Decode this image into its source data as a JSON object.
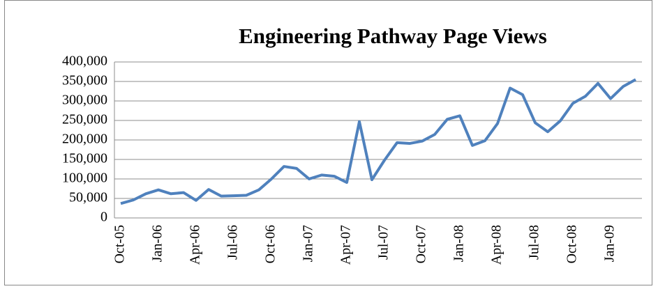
{
  "chart_data": {
    "type": "line",
    "title": "Engineering Pathway Page Views",
    "categories": [
      "Oct-05",
      null,
      null,
      "Jan-06",
      null,
      null,
      "Apr-06",
      null,
      null,
      "Jul-06",
      null,
      null,
      "Oct-06",
      null,
      null,
      "Jan-07",
      null,
      null,
      "Apr-07",
      null,
      null,
      "Jul-07",
      null,
      null,
      "Oct-07",
      null,
      null,
      "Jan-08",
      null,
      null,
      "Apr-08",
      null,
      null,
      "Jul-08",
      null,
      null,
      "Oct-08",
      null,
      null,
      "Jan-09",
      null,
      null
    ],
    "series": [
      {
        "name": "Page Views",
        "color": "#4f81bd",
        "values": [
          37000,
          46000,
          62000,
          72000,
          62000,
          65000,
          45000,
          73000,
          56000,
          57000,
          58000,
          72000,
          100000,
          132000,
          127000,
          100000,
          110000,
          107000,
          91000,
          247000,
          98000,
          148000,
          193000,
          191000,
          197000,
          214000,
          253000,
          262000,
          186000,
          198000,
          242000,
          333000,
          316000,
          244000,
          221000,
          249000,
          294000,
          312000,
          345000,
          306000,
          337000,
          355000
        ]
      }
    ],
    "ylim": [
      0,
      400000
    ],
    "yticks": [
      0,
      {
        "value": 50000,
        "label": "50,000"
      },
      {
        "value": 100000,
        "label": "100,000"
      },
      {
        "value": 150000,
        "label": "150,000"
      },
      {
        "value": 200000,
        "label": "200,000"
      },
      {
        "value": 250000,
        "label": "250,000"
      },
      {
        "value": 300000,
        "label": "300,000"
      },
      {
        "value": 350000,
        "label": "350,000"
      },
      {
        "value": 400000,
        "label": "400,000"
      }
    ],
    "grid": true
  }
}
